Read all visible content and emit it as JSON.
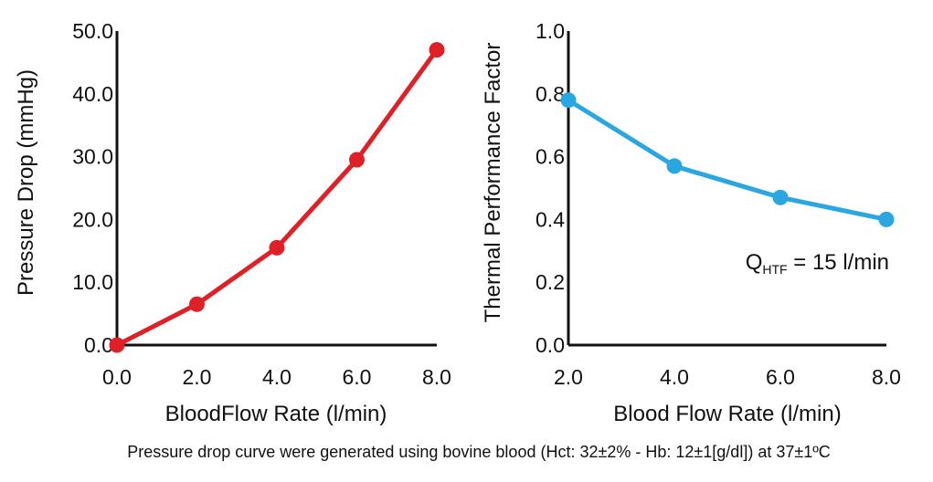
{
  "chart_data": [
    {
      "type": "line",
      "xlabel": "BloodFlow Rate (l/min)",
      "ylabel": "Pressure Drop (mmHg)",
      "x_ticks": [
        "0.0",
        "2.0",
        "4.0",
        "6.0",
        "8.0"
      ],
      "y_ticks": [
        "0.0",
        "10.0",
        "20.0",
        "30.0",
        "40.0",
        "50.0"
      ],
      "xlim": [
        0,
        8
      ],
      "ylim": [
        0,
        50
      ],
      "color": "#e02027",
      "series": [
        {
          "x": [
            0,
            2,
            4,
            6,
            8
          ],
          "values": [
            0,
            6.5,
            15.5,
            29.5,
            47
          ]
        }
      ]
    },
    {
      "type": "line",
      "xlabel": "Blood Flow Rate (l/min)",
      "ylabel": "Thermal Performance Factor",
      "x_ticks": [
        "2.0",
        "4.0",
        "6.0",
        "8.0"
      ],
      "y_ticks": [
        "0.0",
        "0.2",
        "0.4",
        "0.6",
        "0.8",
        "1.0"
      ],
      "xlim": [
        2,
        8
      ],
      "ylim": [
        0,
        1
      ],
      "color": "#2aa6e0",
      "series": [
        {
          "x": [
            2,
            4,
            6,
            8
          ],
          "values": [
            0.78,
            0.57,
            0.47,
            0.4
          ]
        }
      ],
      "annotation": {
        "main": "Q",
        "subscript": "HTF",
        "rest": " = 15 l/min"
      }
    }
  ],
  "footnote": "Pressure drop curve were generated using bovine blood (Hct: 32±2% - Hb: 12±1[g/dl]) at 37±1ºC"
}
